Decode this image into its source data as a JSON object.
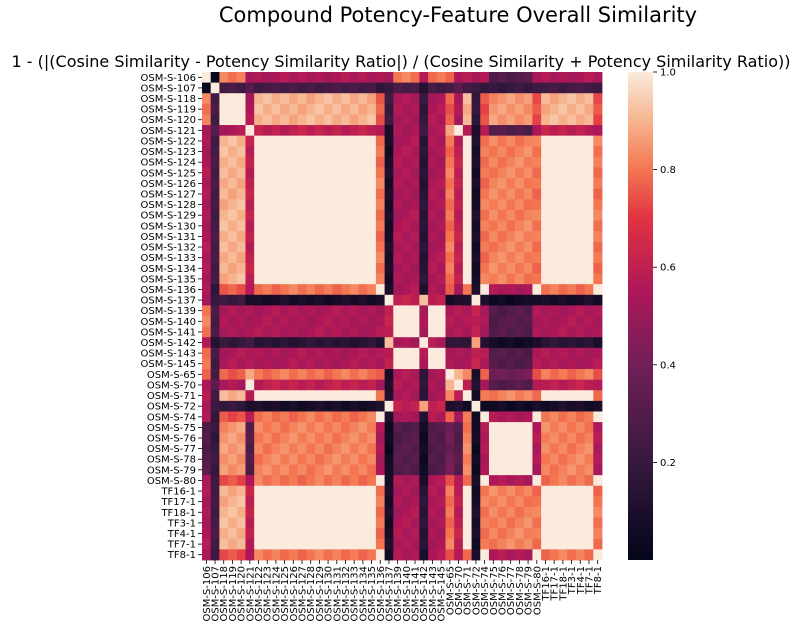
{
  "chart_data": {
    "type": "heatmap",
    "title": "Compound Potency-Feature Overall Similarity",
    "subtitle": "1 - (|(Cosine Similarity - Potency Similarity Ratio|) /  (Cosine Similarity + Potency Similarity Ratio))",
    "labels": [
      "OSM-S-106",
      "OSM-S-107",
      "OSM-S-118",
      "OSM-S-119",
      "OSM-S-120",
      "OSM-S-121",
      "OSM-S-122",
      "OSM-S-123",
      "OSM-S-124",
      "OSM-S-125",
      "OSM-S-126",
      "OSM-S-127",
      "OSM-S-128",
      "OSM-S-129",
      "OSM-S-130",
      "OSM-S-131",
      "OSM-S-132",
      "OSM-S-133",
      "OSM-S-134",
      "OSM-S-135",
      "OSM-S-136",
      "OSM-S-137",
      "OSM-S-139",
      "OSM-S-140",
      "OSM-S-141",
      "OSM-S-142",
      "OSM-S-143",
      "OSM-S-145",
      "OSM-S-65",
      "OSM-S-70",
      "OSM-S-71",
      "OSM-S-72",
      "OSM-S-74",
      "OSM-S-75",
      "OSM-S-76",
      "OSM-S-77",
      "OSM-S-78",
      "OSM-S-79",
      "OSM-S-80",
      "TF16-1",
      "TF17-1",
      "TF18-1",
      "TF3-1",
      "TF4-1",
      "TF7-1",
      "TF8-1"
    ],
    "colorbar": {
      "range": [
        0.0,
        1.0
      ],
      "ticks": [
        "0.2",
        "0.4",
        "0.6",
        "0.8",
        "1.0"
      ],
      "colormap": "rocket"
    },
    "diagonal_value": 1.0
  }
}
